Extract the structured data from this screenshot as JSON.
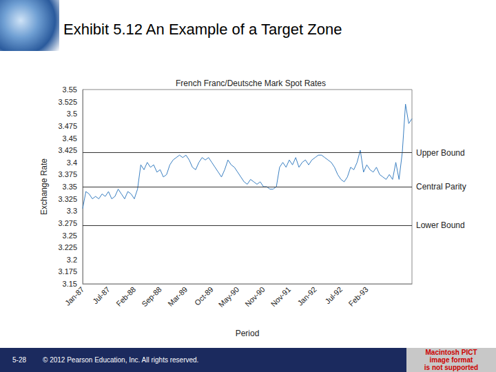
{
  "slide": {
    "title": "Exhibit 5.12  An Example of a Target Zone",
    "page_number": "5-28",
    "footer": "© 2012 Pearson Education, Inc. All rights reserved.",
    "placeholder": [
      "Macintosh PICT",
      "image format",
      "is not supported"
    ]
  },
  "chart_data": {
    "type": "line",
    "title": "French Franc/Deutsche Mark Spot Rates",
    "x_label": "Period",
    "y_label": "Exchange Rate",
    "categories": [
      "Jan-87",
      null,
      null,
      null,
      null,
      null,
      null,
      null,
      "Jul-87",
      null,
      null,
      null,
      null,
      null,
      null,
      null,
      "Feb-88",
      null,
      null,
      null,
      null,
      null,
      null,
      null,
      "Sep-88",
      null,
      null,
      null,
      null,
      null,
      null,
      null,
      "Mar-89",
      null,
      null,
      null,
      null,
      null,
      null,
      null,
      "Oct-89",
      null,
      null,
      null,
      null,
      null,
      null,
      null,
      "May-90",
      null,
      null,
      null,
      null,
      null,
      null,
      null,
      "Nov-90",
      null,
      null,
      null,
      null,
      null,
      null,
      null,
      "Nov-91",
      null,
      null,
      null,
      null,
      null,
      null,
      null,
      "Jan-92",
      null,
      null,
      null,
      null,
      null,
      null,
      null,
      "Jul-92",
      null,
      null,
      null,
      null,
      null,
      null,
      null,
      "Feb-93",
      null,
      null,
      null,
      null,
      null,
      null,
      null,
      null,
      null,
      null,
      null,
      null,
      null,
      null
    ],
    "values": [
      3.305,
      3.34,
      3.335,
      3.325,
      3.33,
      3.325,
      3.335,
      3.33,
      3.34,
      3.325,
      3.33,
      3.345,
      3.335,
      3.325,
      3.34,
      3.335,
      3.325,
      3.345,
      3.395,
      3.385,
      3.4,
      3.39,
      3.395,
      3.38,
      3.385,
      3.37,
      3.375,
      3.395,
      3.405,
      3.41,
      3.415,
      3.41,
      3.415,
      3.405,
      3.39,
      3.385,
      3.4,
      3.41,
      3.405,
      3.41,
      3.4,
      3.39,
      3.38,
      3.37,
      3.385,
      3.405,
      3.395,
      3.39,
      3.38,
      3.37,
      3.36,
      3.355,
      3.365,
      3.36,
      3.355,
      3.36,
      3.35,
      3.35,
      3.345,
      3.345,
      3.35,
      3.39,
      3.4,
      3.39,
      3.405,
      3.395,
      3.41,
      3.39,
      3.4,
      3.405,
      3.395,
      3.405,
      3.41,
      3.415,
      3.415,
      3.41,
      3.405,
      3.4,
      3.39,
      3.375,
      3.365,
      3.36,
      3.37,
      3.39,
      3.385,
      3.4,
      3.425,
      3.38,
      3.395,
      3.385,
      3.38,
      3.39,
      3.375,
      3.37,
      3.365,
      3.375,
      3.365,
      3.4,
      3.365,
      3.42,
      3.52,
      3.48,
      3.49
    ],
    "color": "#3a7fc1",
    "ylim": [
      3.15,
      3.55
    ],
    "yticks": [
      3.15,
      3.175,
      3.2,
      3.225,
      3.25,
      3.275,
      3.3,
      3.325,
      3.35,
      3.375,
      3.4,
      3.425,
      3.45,
      3.475,
      3.5,
      3.525,
      3.55
    ],
    "grid": false,
    "reference_lines": [
      {
        "label": "Upper Bound",
        "value": 3.425
      },
      {
        "label": "Central Parity",
        "value": 3.35
      },
      {
        "label": "Lower Bound",
        "value": 3.275
      }
    ]
  }
}
